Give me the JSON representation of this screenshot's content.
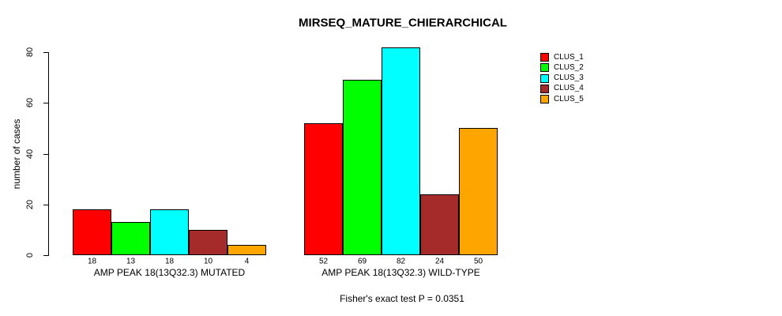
{
  "chart_data": {
    "type": "bar",
    "title": "MIRSEQ_MATURE_CHIERARCHICAL",
    "ylabel": "number of cases",
    "annotation": "Fisher's exact test P = 0.0351",
    "ylim": [
      0,
      80
    ],
    "yticks": [
      0,
      20,
      40,
      60,
      80
    ],
    "grid": false,
    "legend_position": "right",
    "categories": [
      "AMP PEAK 18(13Q32.3) MUTATED",
      "AMP PEAK 18(13Q32.3) WILD-TYPE"
    ],
    "series": [
      {
        "name": "CLUS_1",
        "color": "#FF0000",
        "values": [
          18,
          52
        ]
      },
      {
        "name": "CLUS_2",
        "color": "#00FF00",
        "values": [
          13,
          69
        ]
      },
      {
        "name": "CLUS_3",
        "color": "#00FFFF",
        "values": [
          18,
          82
        ]
      },
      {
        "name": "CLUS_4",
        "color": "#A52A2A",
        "values": [
          10,
          24
        ]
      },
      {
        "name": "CLUS_5",
        "color": "#FFA500",
        "values": [
          4,
          50
        ]
      }
    ]
  }
}
